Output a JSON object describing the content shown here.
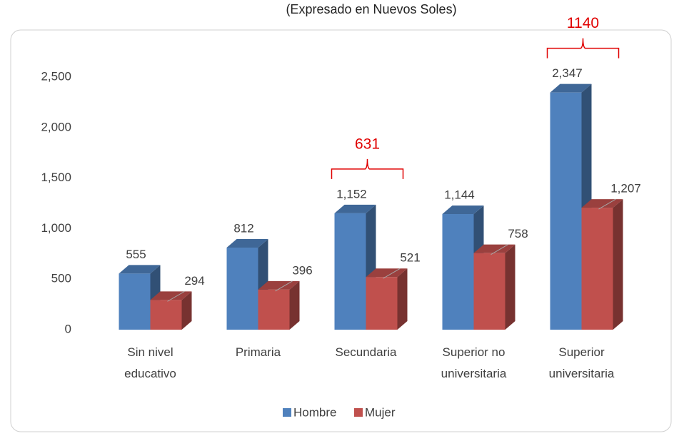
{
  "chart_data": {
    "type": "bar3d",
    "subtitle": "(Expresado en Nuevos Soles)",
    "categories": [
      "Sin nivel educativo",
      "Primaria",
      "Secundaria",
      "Superior no universitaria",
      "Superior universitaria"
    ],
    "series": [
      {
        "name": "Hombre",
        "color": "#4f81bd",
        "values": [
          555,
          812,
          1152,
          1144,
          2347
        ],
        "value_labels": [
          "555",
          "812",
          "1,152",
          "1,144",
          "2,347"
        ]
      },
      {
        "name": "Mujer",
        "color": "#c0504d",
        "values": [
          294,
          396,
          521,
          758,
          1207
        ],
        "value_labels": [
          "294",
          "396",
          "521",
          "758",
          "1,207"
        ]
      }
    ],
    "ylim": [
      0,
      2500
    ],
    "yticks": [
      0,
      500,
      {
        "value": 1000,
        "label": "1,000"
      },
      {
        "value": 1500,
        "label": "1,500"
      },
      {
        "value": 2000,
        "label": "2,000"
      },
      {
        "value": 2500,
        "label": "2,500"
      }
    ],
    "annotations": [
      {
        "text": "631",
        "category": 2
      },
      {
        "text": "1140",
        "category": 4
      }
    ],
    "legend": "bottom"
  }
}
